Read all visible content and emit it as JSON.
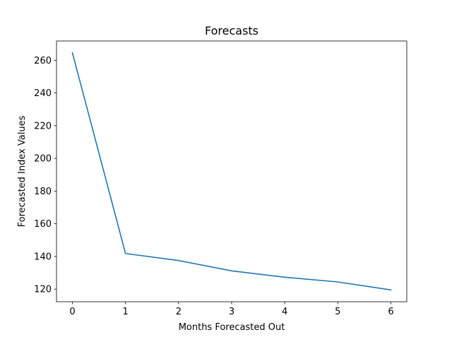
{
  "chart_data": {
    "type": "line",
    "title": "Forecasts",
    "xlabel": "Months Forecasted Out",
    "ylabel": "Forecasted Index Values",
    "x": [
      0,
      1,
      2,
      3,
      4,
      5,
      6
    ],
    "series": [
      {
        "values": [
          264.5,
          141.8,
          137.5,
          131.2,
          127.3,
          124.4,
          119.5
        ],
        "color": "#1f77b4"
      }
    ],
    "xticks": [
      0,
      1,
      2,
      3,
      4,
      5,
      6
    ],
    "yticks": [
      120,
      140,
      160,
      180,
      200,
      220,
      240,
      260
    ],
    "xlim": [
      -0.3,
      6.3
    ],
    "ylim": [
      112.3,
      271.8
    ],
    "grid": false,
    "legend": "none"
  }
}
